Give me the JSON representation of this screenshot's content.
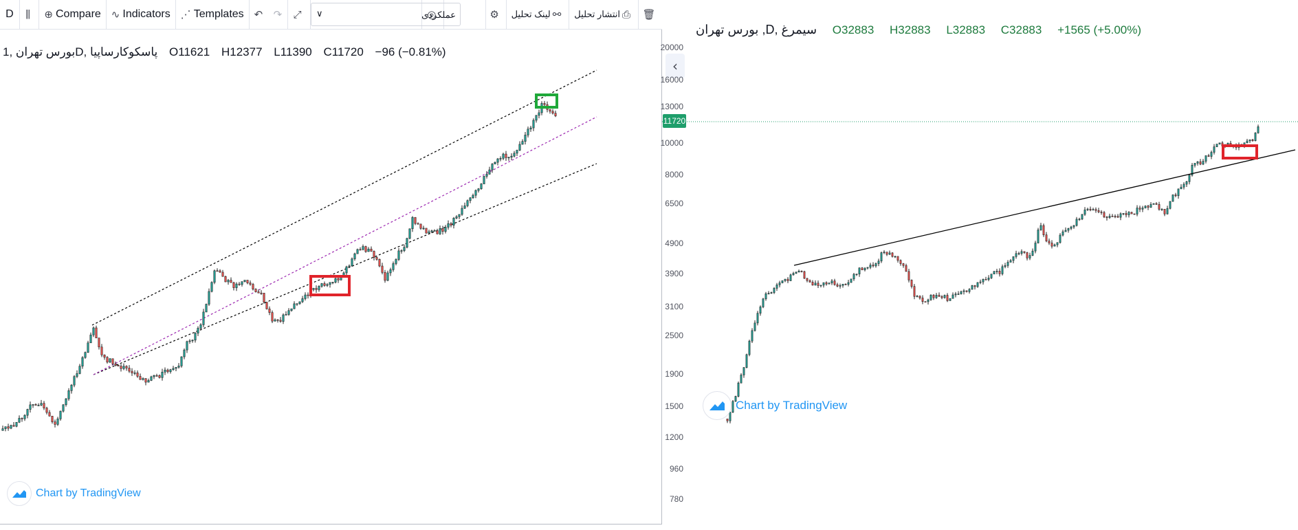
{
  "left": {
    "toolbar": {
      "symbol_letter": "D",
      "compare": "Compare",
      "indicators": "Indicators",
      "templates": "Templates",
      "search_value": "عملکردی",
      "link_analysis": "لینک تحلیل",
      "publish_analysis": "انتشار تحلیل"
    },
    "legend": {
      "symbol": "بورس تهران ,1D, پاسکوکارساپیا",
      "open": "O11621",
      "high": "H12377",
      "low": "L11390",
      "close": "C11720",
      "change": "−96 (−0.81%)"
    },
    "price_axis": {
      "ticks": [
        "20000",
        "16000",
        "13000",
        "10000",
        "8000",
        "6500",
        "4900",
        "3900",
        "3100",
        "2500",
        "1900",
        "1500",
        "1200",
        "960",
        "780"
      ],
      "last_price": "11720",
      "scale": "log"
    },
    "watermark": "Chart by TradingView",
    "annotations": [
      "upper-channel-line",
      "mid-channel-line",
      "lower-channel-line",
      "red-box",
      "green-box"
    ]
  },
  "right": {
    "legend": {
      "symbol": "بورس تهران ,D, سیمرغ",
      "open": "O32883",
      "high": "H32883",
      "low": "L32883",
      "close": "C32883",
      "change": "+1565 (+5.00%)"
    },
    "watermark": "Chart by TradingView",
    "annotations": [
      "trend-line",
      "red-box"
    ]
  },
  "colors": {
    "up_candle": "#26a69a",
    "down_candle": "#ef5350",
    "channel": "#000000",
    "mid_channel": "#9c27b0",
    "red_box": "#e0242b",
    "green_box": "#1fa83a",
    "last_price_tag": "#1e9e6b",
    "watermark": "#2196f3"
  }
}
